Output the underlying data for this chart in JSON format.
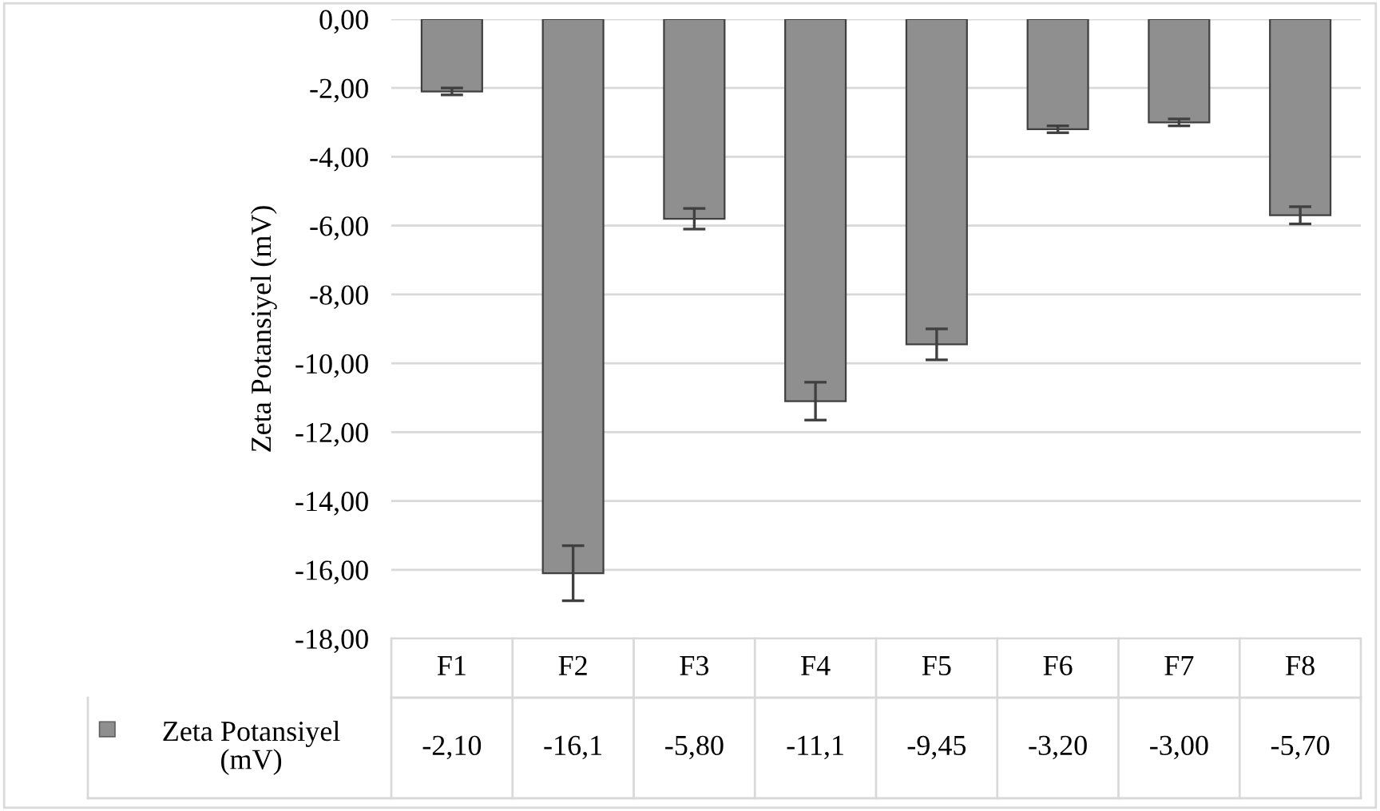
{
  "chart_data": {
    "type": "bar",
    "ylabel": "Zeta Potansiyel (mV)",
    "categories": [
      "F1",
      "F2",
      "F3",
      "F4",
      "F5",
      "F6",
      "F7",
      "F8"
    ],
    "series": [
      {
        "name": "Zeta Potansiyel (mV)",
        "color": "#8f8f8f",
        "values": [
          -2.1,
          -16.1,
          -5.8,
          -11.1,
          -9.45,
          -3.2,
          -3.0,
          -5.7
        ],
        "errors": [
          0.1,
          0.8,
          0.3,
          0.55,
          0.45,
          0.1,
          0.1,
          0.25
        ],
        "value_labels": [
          "-2,10",
          "-16,1",
          "-5,80",
          "-11,1",
          "-9,45",
          "-3,20",
          "-3,00",
          "-5,70"
        ]
      }
    ],
    "ylim": [
      -18,
      0
    ],
    "yticks": [
      {
        "value": 0,
        "label": "0,00"
      },
      {
        "value": -2,
        "label": "-2,00"
      },
      {
        "value": -4,
        "label": "-4,00"
      },
      {
        "value": -6,
        "label": "-6,00"
      },
      {
        "value": -8,
        "label": "-8,00"
      },
      {
        "value": -10,
        "label": "-10,00"
      },
      {
        "value": -12,
        "label": "-12,00"
      },
      {
        "value": -14,
        "label": "-14,00"
      },
      {
        "value": -16,
        "label": "-16,00"
      },
      {
        "value": -18,
        "label": "-18,00"
      }
    ],
    "grid": "y",
    "legend": "bottom"
  }
}
